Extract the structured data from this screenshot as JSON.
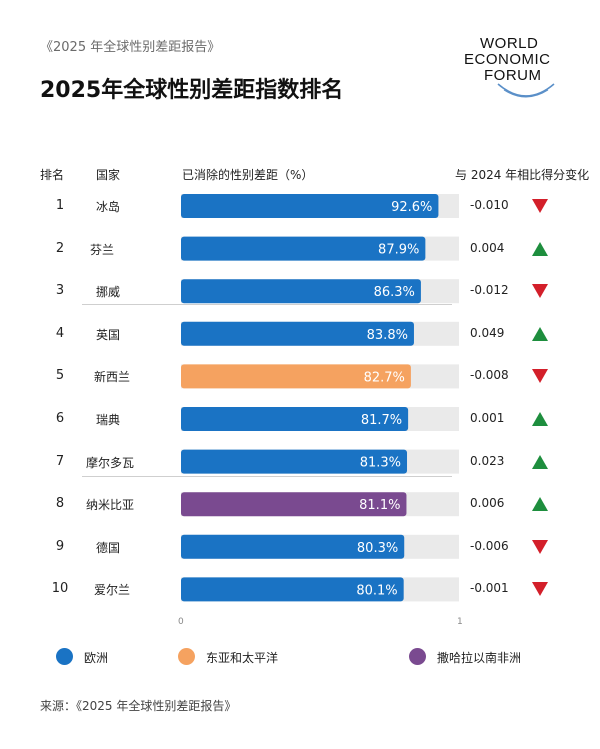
{
  "header": {
    "report": "《2025 年全球性别差距报告》",
    "title": "2025年全球性别差距指数排名"
  },
  "logo": {
    "line1": "WORLD",
    "line2": "ECONOMIC",
    "line3": "FORUM"
  },
  "columns": {
    "rank": "排名",
    "country": "国家",
    "bar": "已消除的性别差距（%）",
    "change": "与 2024 年相比得分变化"
  },
  "colors": {
    "europe": "#1a73c4",
    "east_asia_pacific": "#f5a260",
    "sub_saharan_africa": "#7a4a90",
    "track": "#eaeaea",
    "up": "#1e8e3e",
    "down": "#d31f2a"
  },
  "chart_data": {
    "type": "bar",
    "orientation": "horizontal",
    "xlim": [
      0,
      1
    ],
    "tick_labels": [
      "0",
      "1"
    ],
    "rows": [
      {
        "rank": "1",
        "country": "冰岛",
        "value": 0.926,
        "label": "92.6%",
        "region": "europe",
        "change": "-0.010",
        "direction": "down"
      },
      {
        "rank": "2",
        "country": "芬兰",
        "value": 0.879,
        "label": "87.9%",
        "region": "europe",
        "change": "0.004",
        "direction": "up"
      },
      {
        "rank": "3",
        "country": "挪威",
        "value": 0.863,
        "label": "86.3%",
        "region": "europe",
        "change": "-0.012",
        "direction": "down"
      },
      {
        "rank": "4",
        "country": "英国",
        "value": 0.838,
        "label": "83.8%",
        "region": "europe",
        "change": "0.049",
        "direction": "up"
      },
      {
        "rank": "5",
        "country": "新西兰",
        "value": 0.827,
        "label": "82.7%",
        "region": "east_asia_pacific",
        "change": "-0.008",
        "direction": "down"
      },
      {
        "rank": "6",
        "country": "瑞典",
        "value": 0.817,
        "label": "81.7%",
        "region": "europe",
        "change": "0.001",
        "direction": "up"
      },
      {
        "rank": "7",
        "country": "摩尔多瓦",
        "value": 0.813,
        "label": "81.3%",
        "region": "europe",
        "change": "0.023",
        "direction": "up"
      },
      {
        "rank": "8",
        "country": "纳米比亚",
        "value": 0.811,
        "label": "81.1%",
        "region": "sub_saharan_africa",
        "change": "0.006",
        "direction": "up"
      },
      {
        "rank": "9",
        "country": "德国",
        "value": 0.803,
        "label": "80.3%",
        "region": "europe",
        "change": "-0.006",
        "direction": "down"
      },
      {
        "rank": "10",
        "country": "爱尔兰",
        "value": 0.801,
        "label": "80.1%",
        "region": "europe",
        "change": "-0.001",
        "direction": "down"
      }
    ]
  },
  "legend": [
    {
      "key": "europe",
      "label": "欧洲"
    },
    {
      "key": "east_asia_pacific",
      "label": "东亚和太平洋"
    },
    {
      "key": "sub_saharan_africa",
      "label": "撒哈拉以南非洲"
    }
  ],
  "source": "来源：《2025 年全球性别差距报告》"
}
